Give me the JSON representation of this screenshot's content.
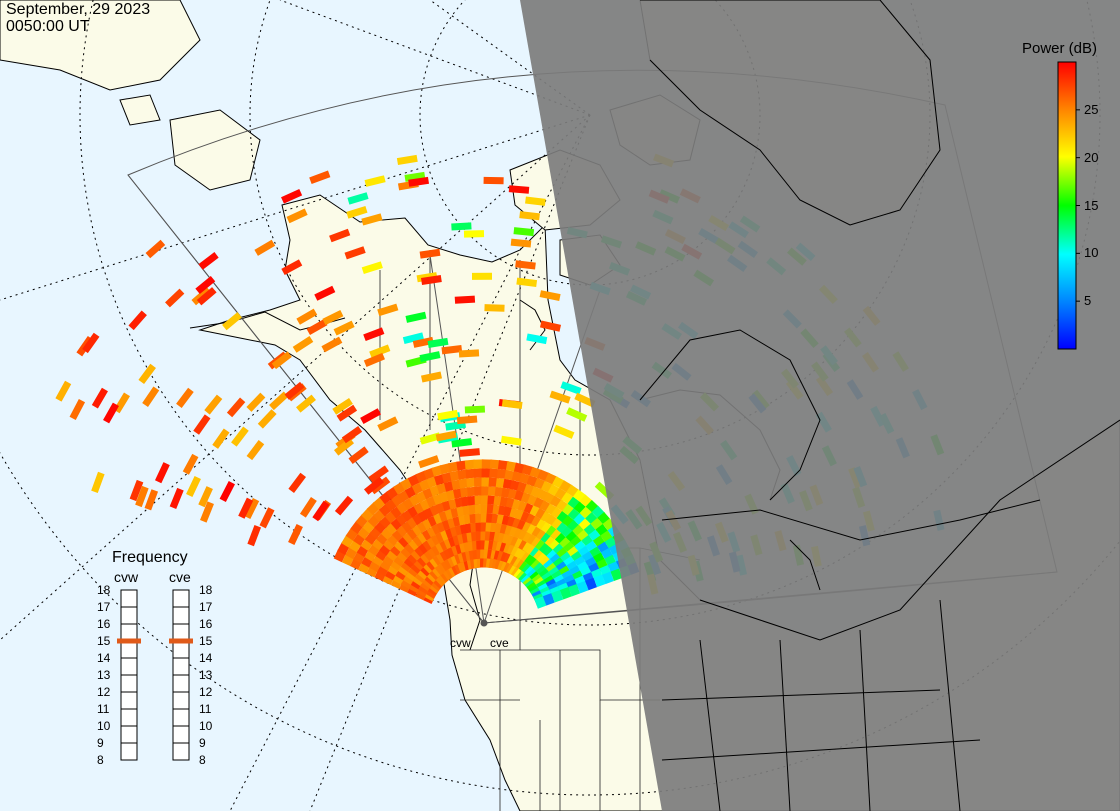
{
  "header": {
    "date": "September, 29 2023",
    "time": "0050:00 UT"
  },
  "colorbar": {
    "title": "Power (dB)",
    "min": 0,
    "max": 30,
    "ticks": [
      "5",
      "10",
      "15",
      "20",
      "25"
    ],
    "tick_values": [
      5,
      10,
      15,
      20,
      25
    ]
  },
  "frequency": {
    "title": "Frequency",
    "radars": [
      {
        "name": "cvw",
        "selected_mhz": 15
      },
      {
        "name": "cve",
        "selected_mhz": 15
      }
    ],
    "scale": [
      "18",
      "17",
      "16",
      "15",
      "14",
      "13",
      "12",
      "11",
      "10",
      "9",
      "8"
    ],
    "marker_color": "#e05a1a"
  },
  "sites": [
    {
      "name": "cvw"
    },
    {
      "name": "cve"
    }
  ],
  "colors": {
    "ocean": "#e8f6ff",
    "land": "#fbfbe8",
    "night": "#7c7c7c",
    "coast": "#000000"
  }
}
